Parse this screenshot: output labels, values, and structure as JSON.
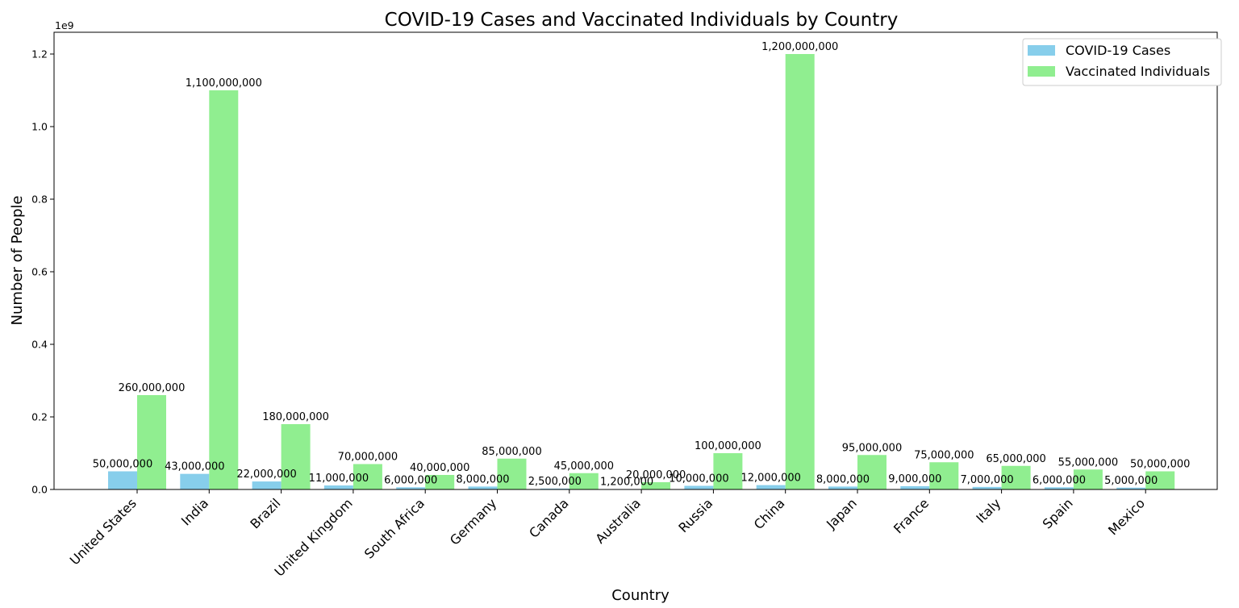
{
  "chart_data": {
    "type": "bar",
    "title": "COVID-19 Cases and Vaccinated Individuals by Country",
    "xlabel": "Country",
    "ylabel": "Number of People",
    "y_offset_label": "1e9",
    "ylim": [
      0,
      1260000000
    ],
    "y_ticks": [
      0,
      200000000,
      400000000,
      600000000,
      800000000,
      1000000000,
      1200000000
    ],
    "y_tick_labels": [
      "0.0",
      "0.2",
      "0.4",
      "0.6",
      "0.8",
      "1.0",
      "1.2"
    ],
    "grid": false,
    "legend_position": "top-right",
    "categories": [
      "United States",
      "India",
      "Brazil",
      "United Kingdom",
      "South Africa",
      "Germany",
      "Canada",
      "Australia",
      "Russia",
      "China",
      "Japan",
      "France",
      "Italy",
      "Spain",
      "Mexico"
    ],
    "series": [
      {
        "name": "COVID-19 Cases",
        "color": "#87ceeb",
        "values": [
          50000000,
          43000000,
          22000000,
          11000000,
          6000000,
          8000000,
          2500000,
          1200000,
          10000000,
          12000000,
          8000000,
          9000000,
          7000000,
          6000000,
          5000000
        ],
        "labels": [
          "50,000,000",
          "43,000,000",
          "22,000,000",
          "11,000,000",
          "6,000,000",
          "8,000,000",
          "2,500,000",
          "1,200,000",
          "10,000,000",
          "12,000,000",
          "8,000,000",
          "9,000,000",
          "7,000,000",
          "6,000,000",
          "5,000,000"
        ]
      },
      {
        "name": "Vaccinated Individuals",
        "color": "#90ee90",
        "values": [
          260000000,
          1100000000,
          180000000,
          70000000,
          40000000,
          85000000,
          45000000,
          20000000,
          100000000,
          1200000000,
          95000000,
          75000000,
          65000000,
          55000000,
          50000000
        ],
        "labels": [
          "260,000,000",
          "1,100,000,000",
          "180,000,000",
          "70,000,000",
          "40,000,000",
          "85,000,000",
          "45,000,000",
          "20,000,000",
          "100,000,000",
          "1,200,000,000",
          "95,000,000",
          "75,000,000",
          "65,000,000",
          "55,000,000",
          "50,000,000"
        ]
      }
    ]
  }
}
